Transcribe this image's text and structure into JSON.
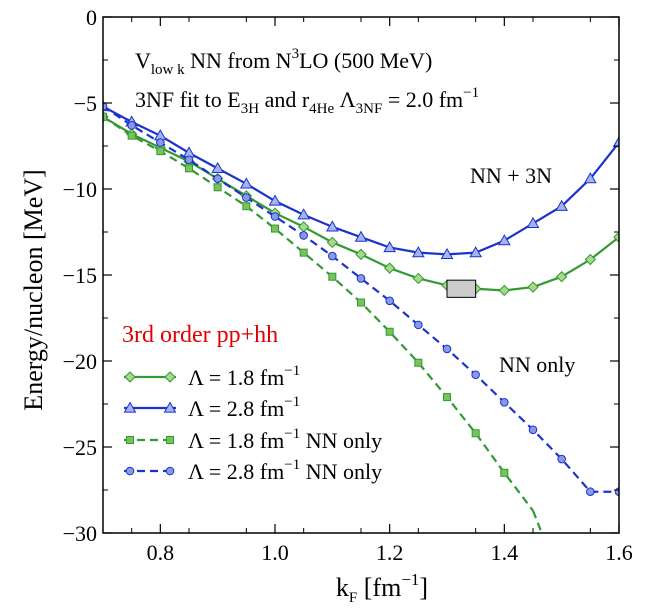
{
  "chart_data": {
    "type": "line",
    "xlabel": "k",
    "xlabel_sub": "F",
    "xlabel_unit_open": " [fm",
    "xlabel_unit_sup": "−1",
    "xlabel_unit_close": "]",
    "ylabel": "Energy/nucleon [MeV]",
    "xlim": [
      0.7,
      1.6
    ],
    "ylim": [
      -30,
      0
    ],
    "xticks": [
      0.8,
      1.0,
      1.2,
      1.4,
      1.6
    ],
    "xtick_labels": [
      "0.8",
      "1.0",
      "1.2",
      "1.4",
      "1.6"
    ],
    "yticks": [
      -30,
      -25,
      -20,
      -15,
      -10,
      -5,
      0
    ],
    "ytick_labels": [
      "−30",
      "−25",
      "−20",
      "−15",
      "−10",
      "−5",
      "0"
    ],
    "annotations": {
      "line1": {
        "a": "V",
        "a_sub": "low k",
        "b": " NN  from N",
        "b_sup": "3",
        "c": "LO (500 MeV)"
      },
      "line2": {
        "a": "3NF fit to E",
        "a_sub": "3H",
        "b": " and r",
        "b_sub": "4He",
        "c": "   Λ",
        "c_sub": "3NF",
        "d": " = 2.0 fm",
        "d_sup": "−1"
      },
      "nn3n": "NN + 3N",
      "nn_only": "NN only",
      "order": "3rd order pp+hh"
    },
    "uncertainty_box": {
      "x": [
        1.3,
        1.35
      ],
      "y": [
        -16.3,
        -15.3
      ]
    },
    "series": [
      {
        "name": "Λ = 1.8 fm",
        "name_sup": "−1",
        "name_suffix": "",
        "color": "#339933",
        "dash": false,
        "marker": "diamond",
        "x": [
          0.7,
          0.75,
          0.8,
          0.85,
          0.9,
          0.95,
          1.0,
          1.05,
          1.1,
          1.15,
          1.2,
          1.25,
          1.3,
          1.35,
          1.4,
          1.45,
          1.5,
          1.55,
          1.6
        ],
        "y": [
          -5.8,
          -6.8,
          -7.6,
          -8.4,
          -9.4,
          -10.4,
          -11.4,
          -12.2,
          -13.1,
          -13.8,
          -14.6,
          -15.2,
          -15.6,
          -15.8,
          -15.9,
          -15.7,
          -15.1,
          -14.1,
          -12.8
        ]
      },
      {
        "name": "Λ = 2.8 fm",
        "name_sup": "−1",
        "name_suffix": "",
        "color": "#1a33cc",
        "dash": false,
        "marker": "triangle",
        "x": [
          0.7,
          0.75,
          0.8,
          0.85,
          0.9,
          0.95,
          1.0,
          1.05,
          1.1,
          1.15,
          1.2,
          1.25,
          1.3,
          1.35,
          1.4,
          1.45,
          1.5,
          1.55,
          1.6
        ],
        "y": [
          -5.2,
          -6.1,
          -6.9,
          -7.9,
          -8.8,
          -9.7,
          -10.7,
          -11.5,
          -12.2,
          -12.8,
          -13.4,
          -13.7,
          -13.8,
          -13.7,
          -13.0,
          -12.0,
          -11.0,
          -9.4,
          -7.3
        ]
      },
      {
        "name": "Λ = 1.8 fm",
        "name_sup": "−1",
        "name_suffix": " NN only",
        "color": "#339933",
        "dash": true,
        "marker": "square",
        "x": [
          0.7,
          0.75,
          0.8,
          0.85,
          0.9,
          0.95,
          1.0,
          1.05,
          1.1,
          1.15,
          1.2,
          1.25,
          1.3,
          1.35,
          1.4,
          1.45
        ],
        "y": [
          -5.8,
          -6.9,
          -7.8,
          -8.8,
          -9.9,
          -11.0,
          -12.3,
          -13.7,
          -15.1,
          -16.6,
          -18.3,
          -20.1,
          -22.1,
          -24.2,
          -26.5,
          -28.7
        ]
      },
      {
        "name": "Λ = 2.8 fm",
        "name_sup": "−1",
        "name_suffix": " NN only",
        "color": "#1a33cc",
        "dash": true,
        "marker": "circle",
        "x": [
          0.7,
          0.75,
          0.8,
          0.85,
          0.9,
          0.95,
          1.0,
          1.05,
          1.1,
          1.15,
          1.2,
          1.25,
          1.3,
          1.35,
          1.4,
          1.45,
          1.5,
          1.55,
          1.6
        ],
        "y": [
          -5.2,
          -6.3,
          -7.3,
          -8.3,
          -9.4,
          -10.5,
          -11.6,
          -12.7,
          -13.9,
          -15.2,
          -16.5,
          -17.9,
          -19.3,
          -20.8,
          -22.4,
          -24.0,
          -25.7,
          -27.6,
          -27.6
        ]
      }
    ]
  }
}
